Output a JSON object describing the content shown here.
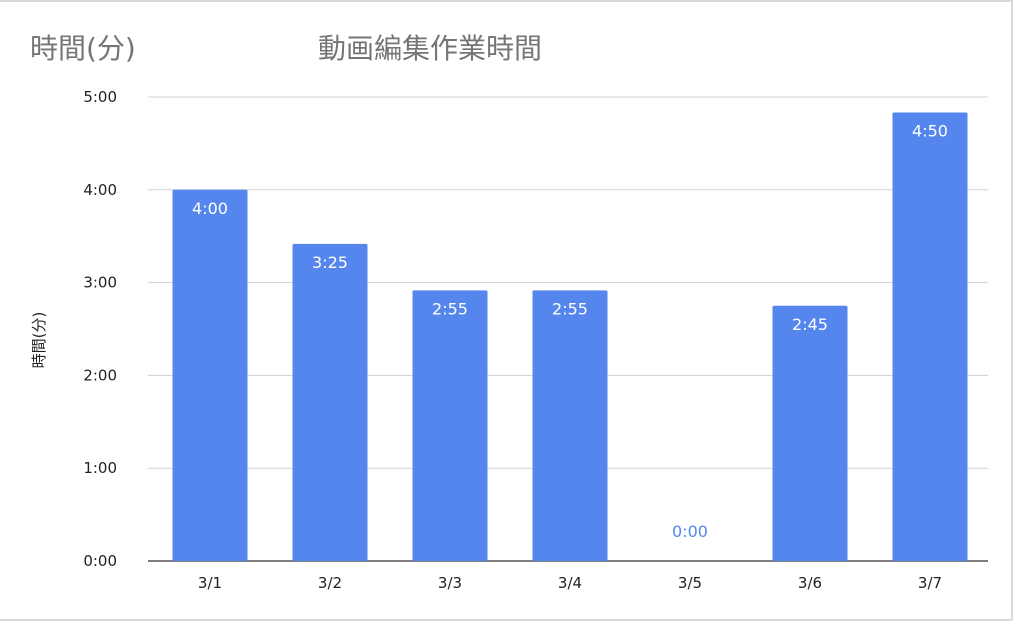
{
  "header": {
    "corner_title": "時間(分)"
  },
  "chart_data": {
    "type": "bar",
    "title": "動画編集作業時間",
    "ylabel": "時間(分)",
    "xlabel": "",
    "categories": [
      "3/1",
      "3/2",
      "3/3",
      "3/4",
      "3/5",
      "3/6",
      "3/7"
    ],
    "values": [
      240,
      205,
      175,
      175,
      0,
      165,
      290
    ],
    "data_labels": [
      "4:00",
      "3:25",
      "2:55",
      "2:55",
      "0:00",
      "2:45",
      "4:50"
    ],
    "yticks": [
      {
        "value": 0,
        "label": "0:00"
      },
      {
        "value": 60,
        "label": "1:00"
      },
      {
        "value": 120,
        "label": "2:00"
      },
      {
        "value": 180,
        "label": "3:00"
      },
      {
        "value": 240,
        "label": "4:00"
      },
      {
        "value": 300,
        "label": "5:00"
      }
    ],
    "ylim": [
      0,
      300
    ],
    "grid": true,
    "legend": "none",
    "colors": {
      "bar": "#5586EE",
      "label_inside": "#FFFFFF",
      "label_outside": "#5586EE",
      "grid": "#D0D0D0"
    }
  }
}
